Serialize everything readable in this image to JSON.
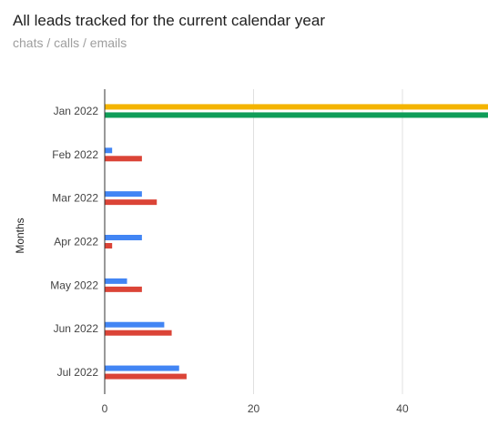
{
  "chart_data": {
    "type": "bar",
    "orientation": "horizontal",
    "title": "All leads tracked for the current calendar year",
    "subtitle": "chats / calls / emails",
    "ylabel": "Months",
    "xlabel": "",
    "categories": [
      "Jan 2022",
      "Feb 2022",
      "Mar 2022",
      "Apr 2022",
      "May 2022",
      "Jun 2022",
      "Jul 2022"
    ],
    "x_ticks": [
      0,
      20,
      40
    ],
    "xlim": [
      0,
      51.5
    ],
    "grid": true,
    "legend": "none",
    "series": [
      {
        "color": "#4285f4",
        "values": [
          0,
          1,
          5,
          5,
          3,
          8,
          10
        ]
      },
      {
        "color": "#db4437",
        "values": [
          0,
          5,
          7,
          1,
          5,
          9,
          11
        ]
      },
      {
        "color": "#f4b400",
        "values": [
          55,
          0,
          0,
          0,
          0,
          0,
          0
        ]
      },
      {
        "color": "#0f9d58",
        "values": [
          55,
          0,
          0,
          0,
          0,
          0,
          0
        ]
      }
    ]
  }
}
